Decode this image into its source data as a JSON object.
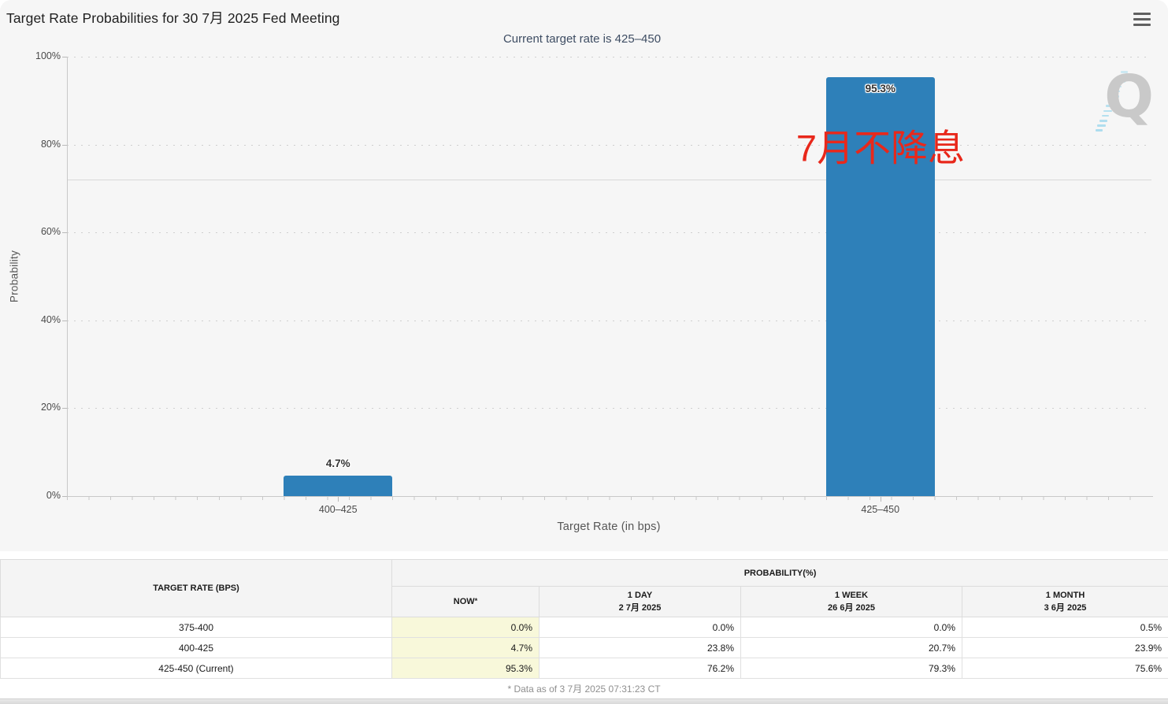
{
  "header": {
    "menu_icon": "hamburger-icon"
  },
  "watermark": {
    "letter": "Q"
  },
  "chart_data": {
    "type": "bar",
    "title": "Target Rate Probabilities for 30 7月 2025 Fed Meeting",
    "subtitle": "Current target rate is 425–450",
    "xlabel": "Target Rate (in bps)",
    "ylabel": "Probability",
    "categories": [
      "400–425",
      "425–450"
    ],
    "values": [
      4.7,
      95.3
    ],
    "bar_labels": [
      "4.7%",
      "95.3%"
    ],
    "bar_color": "#2e80b9",
    "ylim": [
      0,
      100
    ],
    "yticks": [
      0,
      20,
      40,
      60,
      80,
      100
    ],
    "ytick_labels": [
      "0%",
      "20%",
      "40%",
      "60%",
      "80%",
      "100%"
    ],
    "grid": "horizontal dotted gridlines at each y tick",
    "legend": "none",
    "reference_line_y": 72,
    "annotation": {
      "text": "7月不降息",
      "color": "#e8281b"
    }
  },
  "table": {
    "col1_header": "TARGET RATE (BPS)",
    "group_header": "PROBABILITY(%)",
    "columns": [
      {
        "label": "NOW",
        "sup": "*",
        "date": ""
      },
      {
        "label": "1 DAY",
        "date": "2 7月 2025"
      },
      {
        "label": "1 WEEK",
        "date": "26 6月 2025"
      },
      {
        "label": "1 MONTH",
        "date": "3 6月 2025"
      }
    ],
    "rows": [
      {
        "rate": "375-400",
        "now": "0.0%",
        "day": "0.0%",
        "week": "0.0%",
        "month": "0.5%"
      },
      {
        "rate": "400-425",
        "now": "4.7%",
        "day": "23.8%",
        "week": "20.7%",
        "month": "23.9%"
      },
      {
        "rate": "425-450 (Current)",
        "now": "95.3%",
        "day": "76.2%",
        "week": "79.3%",
        "month": "75.6%"
      }
    ]
  },
  "footer": {
    "note": "* Data as of 3 7月 2025 07:31:23 CT"
  }
}
